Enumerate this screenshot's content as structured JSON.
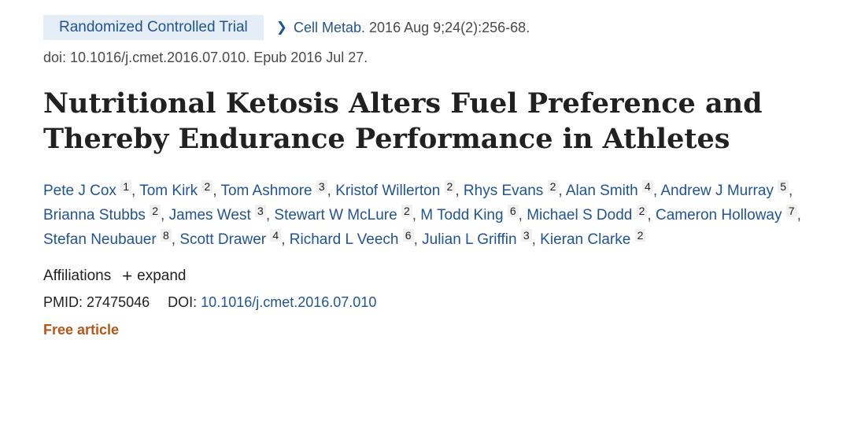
{
  "badge": "Randomized Controlled Trial",
  "citation": {
    "journal": "Cell Metab.",
    "details": "2016 Aug 9;24(2):256-68."
  },
  "doi_line": "doi: 10.1016/j.cmet.2016.07.010. Epub 2016 Jul 27.",
  "title": "Nutritional Ketosis Alters Fuel Preference and Thereby Endurance Performance in Athletes",
  "authors": [
    {
      "name": "Pete J Cox",
      "aff": "1"
    },
    {
      "name": "Tom Kirk",
      "aff": "2"
    },
    {
      "name": "Tom Ashmore",
      "aff": "3"
    },
    {
      "name": "Kristof Willerton",
      "aff": "2"
    },
    {
      "name": "Rhys Evans",
      "aff": "2"
    },
    {
      "name": "Alan Smith",
      "aff": "4"
    },
    {
      "name": "Andrew J Murray",
      "aff": "5"
    },
    {
      "name": "Brianna Stubbs",
      "aff": "2"
    },
    {
      "name": "James West",
      "aff": "3"
    },
    {
      "name": "Stewart W McLure",
      "aff": "2"
    },
    {
      "name": "M Todd King",
      "aff": "6"
    },
    {
      "name": "Michael S Dodd",
      "aff": "2"
    },
    {
      "name": "Cameron Holloway",
      "aff": "7"
    },
    {
      "name": "Stefan Neubauer",
      "aff": "8"
    },
    {
      "name": "Scott Drawer",
      "aff": "4"
    },
    {
      "name": "Richard L Veech",
      "aff": "6"
    },
    {
      "name": "Julian L Griffin",
      "aff": "3"
    },
    {
      "name": "Kieran Clarke",
      "aff": "2"
    }
  ],
  "affiliations": {
    "label": "Affiliations",
    "plus": "+",
    "expand": "expand"
  },
  "ids": {
    "pmid_label": "PMID:",
    "pmid": "27475046",
    "doi_label": "DOI:",
    "doi": "10.1016/j.cmet.2016.07.010"
  },
  "free_article": "Free article",
  "icons": {
    "citation_chevron": "chevron-right-icon",
    "expand": "plus-icon"
  },
  "colors": {
    "link": "#205493",
    "badge_bg": "#e5eef7",
    "free": "#b5561a",
    "text": "#212121"
  }
}
